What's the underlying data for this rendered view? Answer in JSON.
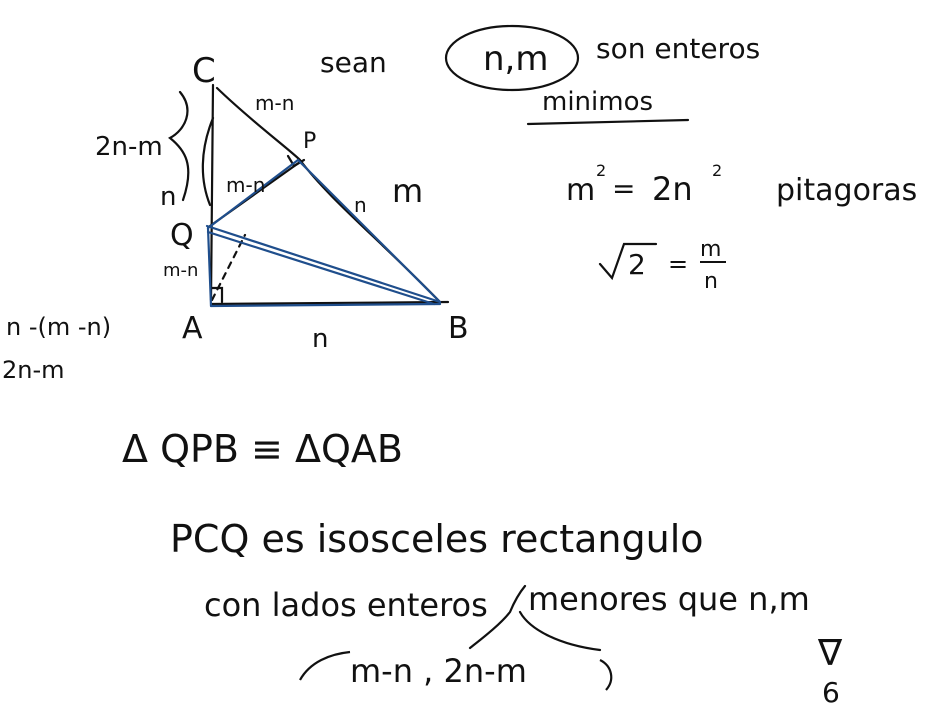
{
  "colors": {
    "ink": "#111111",
    "accent": "#1f4e8c",
    "background": "#ffffff"
  },
  "vertices": {
    "C": "C",
    "P": "P",
    "Q": "Q",
    "A": "A",
    "B": "B"
  },
  "segment_labels": {
    "cp": "m-n",
    "qp": "m-n",
    "pb": "n",
    "cq": "2n-m",
    "qa_upper": "n",
    "qa": "m-n",
    "ab": "n",
    "hyp": "m"
  },
  "side_notes": {
    "line1": "n -(m -n)",
    "line2": "2n-m"
  },
  "header": {
    "sean": "sean",
    "vars": "n,m",
    "rest": "son enteros",
    "minimos": "minimos"
  },
  "equations": {
    "m_base": "m",
    "m_exp": "2",
    "eq": "=",
    "two_n": "2n",
    "n_exp": "2",
    "pitagoras": "pitagoras",
    "sqrt_body": "2",
    "eq2": "=",
    "frac_num": "m",
    "frac_den": "n"
  },
  "statements": {
    "congruence": "Δ QPB ≡ ΔQAB",
    "isosceles": "PCQ es isosceles rectangulo",
    "sides_left": "con lados enteros",
    "sides_right": "menores que n,m",
    "bracket": "m-n , 2n-m",
    "qed_top": "∇",
    "qed_bottom": "6"
  }
}
